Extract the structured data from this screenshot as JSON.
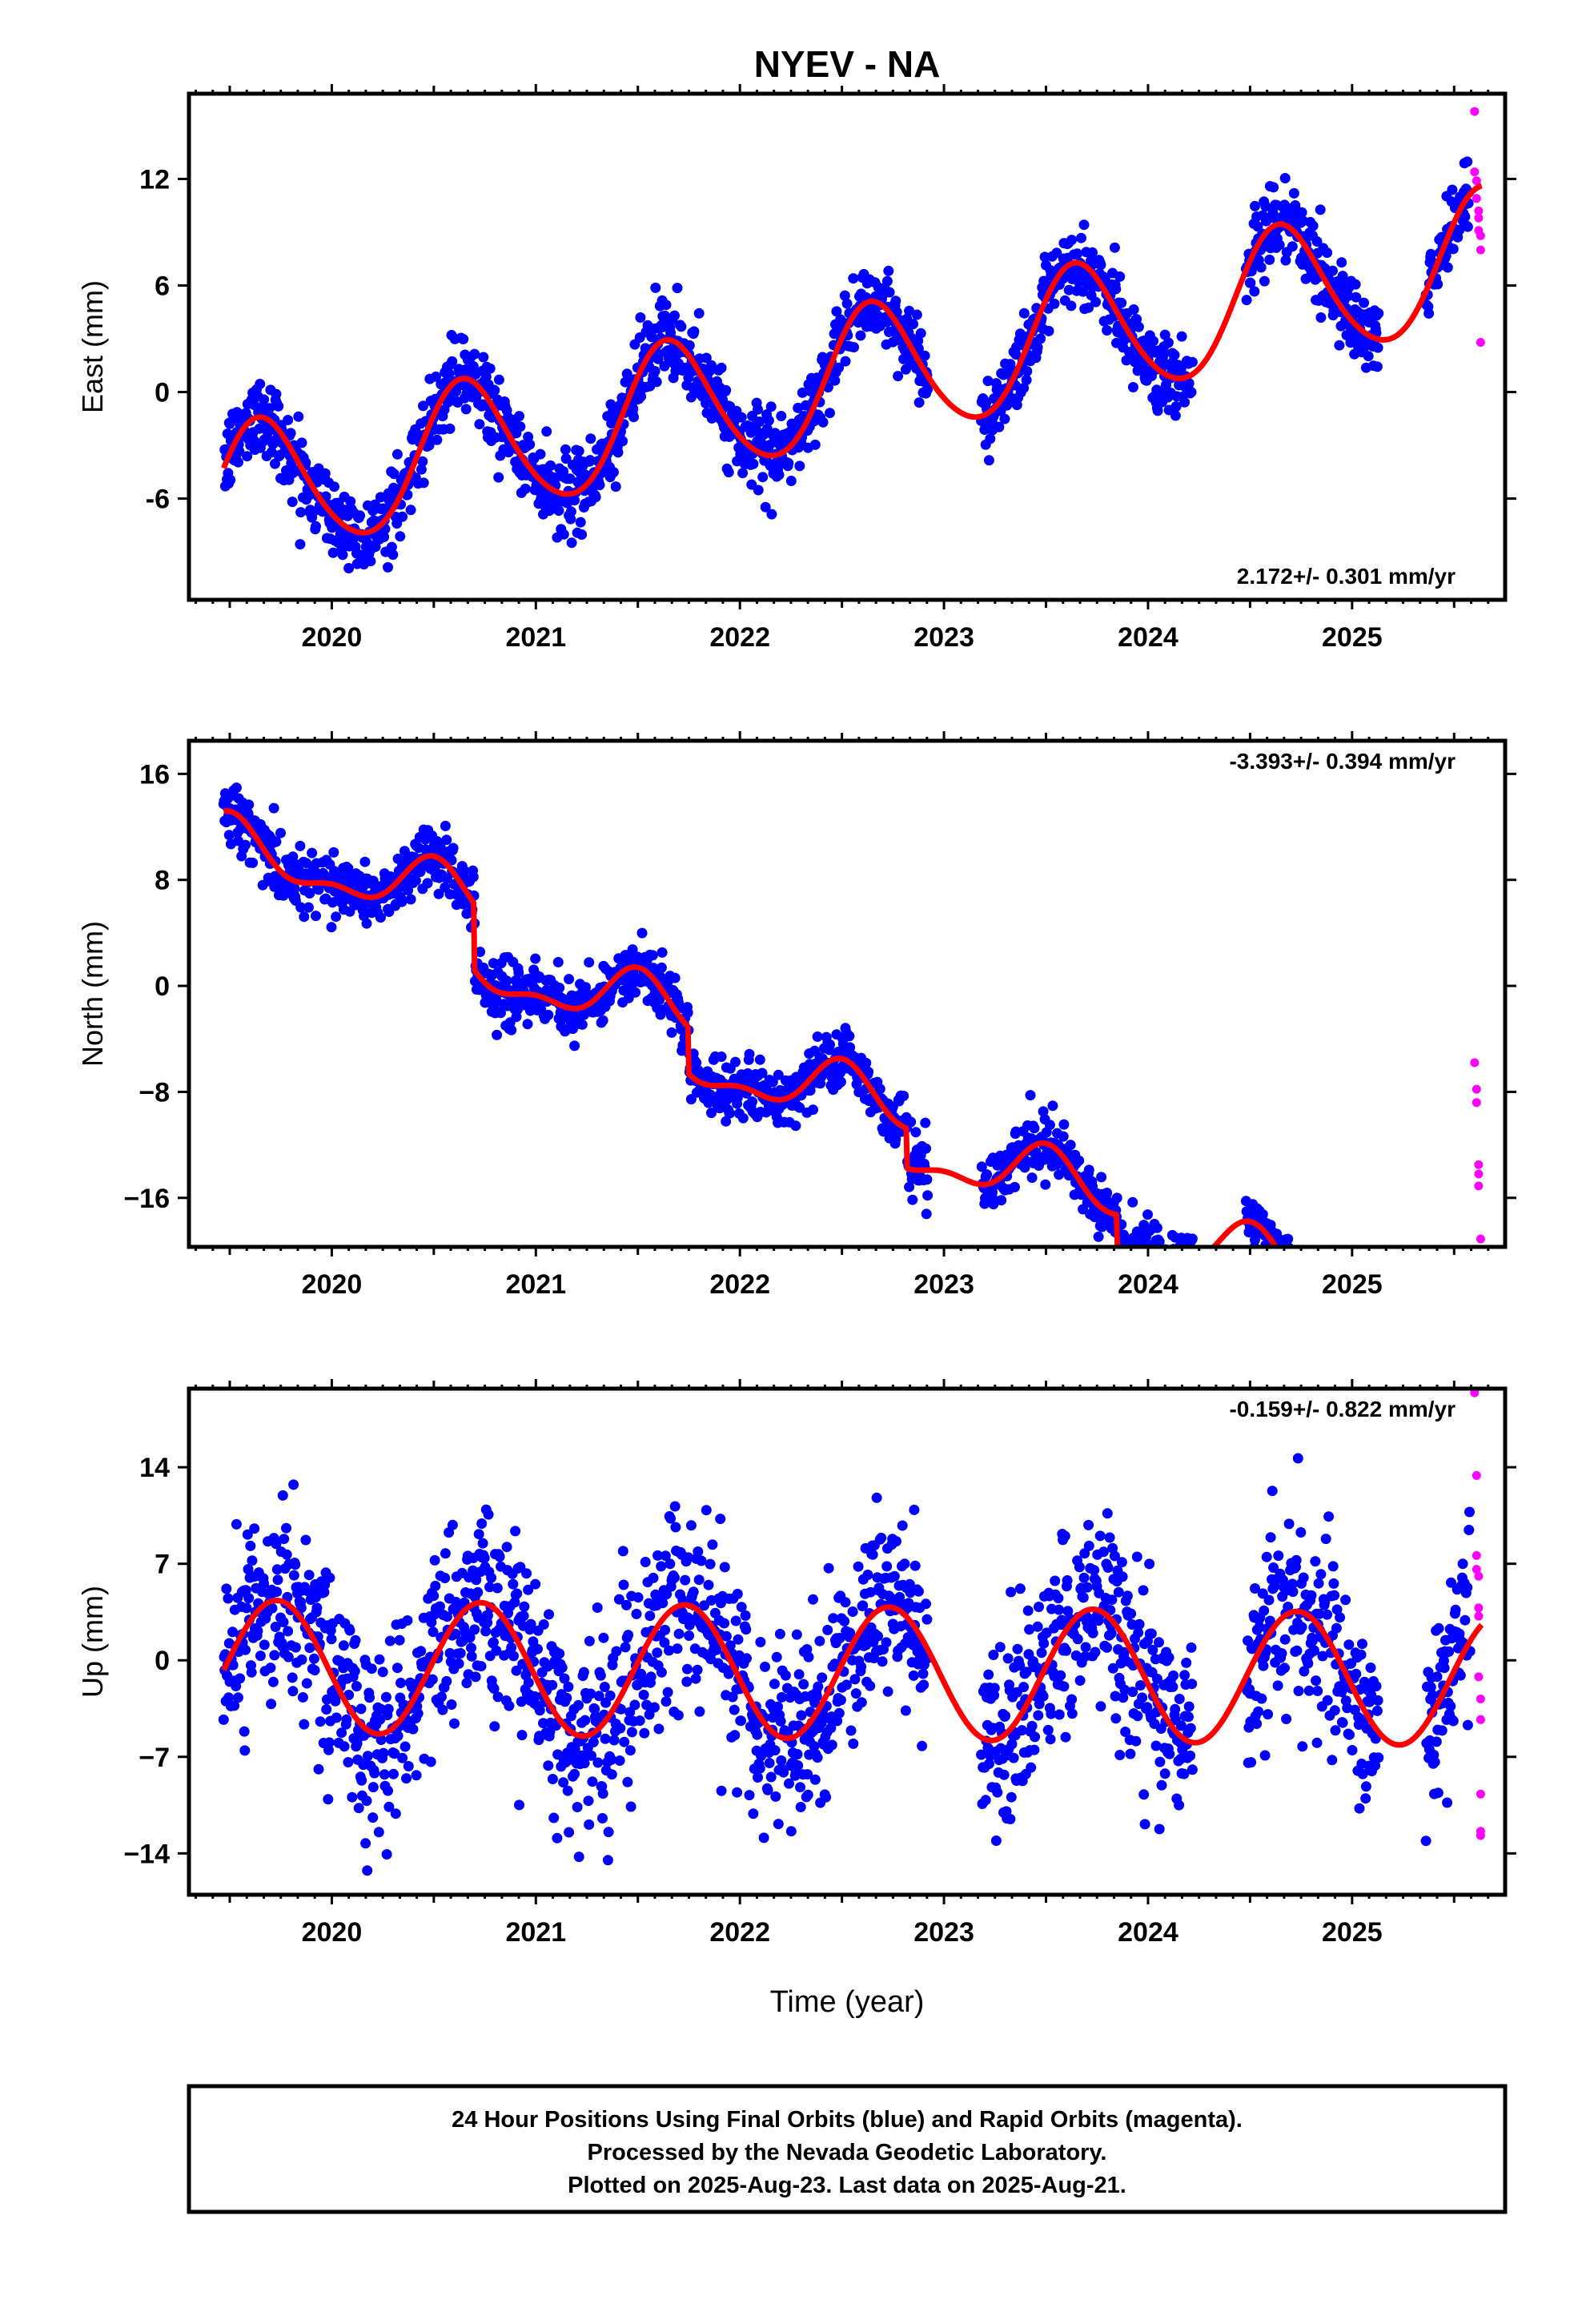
{
  "title": "NYEV - NA",
  "xlabel": "Time (year)",
  "footer": {
    "line1": "24 Hour Positions Using Final Orbits (blue) and Rapid Orbits (magenta).",
    "line2": "Processed by the Nevada Geodetic Laboratory.",
    "line3": "Plotted on 2025-Aug-23. Last data on 2025-Aug-21."
  },
  "colors": {
    "final": "#0000ff",
    "rapid": "#ff00ff",
    "model": "#ff0000",
    "frame": "#000000"
  },
  "chart_data": [
    {
      "type": "scatter",
      "name": "east",
      "ylabel": "East (mm)",
      "rate_text": "2.172+/- 0.301 mm/yr",
      "xlim": [
        2019.3,
        2025.75
      ],
      "ylim": [
        -11.7,
        16.8
      ],
      "xticks": [
        2020,
        2021,
        2022,
        2023,
        2024,
        2025
      ],
      "xtick_labels": [
        "2020",
        "2021",
        "2022",
        "2023",
        "2024",
        "2025"
      ],
      "yticks": [
        -6,
        0,
        6,
        12
      ],
      "ytick_labels": [
        "-6",
        "0",
        "6",
        "12"
      ],
      "model": {
        "ref_year": 2022.5,
        "offset": 0.7,
        "rate": 2.172,
        "annual_amp": 3.8,
        "annual_phase_year": 0.65,
        "semiannual_amp": 0.35,
        "semiannual_phase_year": 0.1
      },
      "gaps": [
        [
          2022.92,
          2023.18
        ],
        [
          2024.22,
          2024.48
        ],
        [
          2025.13,
          2025.36
        ]
      ],
      "scatter_sd": 1.1,
      "rapid_points": [
        {
          "x": 2025.6,
          "y": 15.8
        },
        {
          "x": 2025.6,
          "y": 12.4
        },
        {
          "x": 2025.61,
          "y": 11.9
        },
        {
          "x": 2025.61,
          "y": 10.9
        },
        {
          "x": 2025.62,
          "y": 10.2
        },
        {
          "x": 2025.62,
          "y": 9.8
        },
        {
          "x": 2025.62,
          "y": 9.1
        },
        {
          "x": 2025.63,
          "y": 8.8
        },
        {
          "x": 2025.63,
          "y": 8.0
        },
        {
          "x": 2025.63,
          "y": 2.8
        }
      ]
    },
    {
      "type": "scatter",
      "name": "north",
      "ylabel": "North (mm)",
      "rate_text": "-3.393+/- 0.394 mm/yr",
      "xlim": [
        2019.3,
        2025.75
      ],
      "ylim": [
        -19.7,
        18.5
      ],
      "xticks": [
        2020,
        2021,
        2022,
        2023,
        2024,
        2025
      ],
      "xtick_labels": [
        "2020",
        "2021",
        "2022",
        "2023",
        "2024",
        "2025"
      ],
      "yticks": [
        -16,
        -8,
        0,
        8,
        16
      ],
      "ytick_labels": [
        "−16",
        "−8",
        "0",
        "8",
        "16"
      ],
      "model": {
        "ref_year": 2022.5,
        "offset": 0.2,
        "rate": -3.393,
        "annual_amp": 1.9,
        "annual_phase_year": 0.5,
        "semiannual_amp": 0.9,
        "semiannual_phase_year": 0.0
      },
      "steps": [
        [
          2020.7,
          -5.0
        ],
        [
          2021.75,
          -3.5
        ],
        [
          2022.82,
          -3.0
        ],
        [
          2023.85,
          -2.5
        ],
        [
          2024.75,
          -2.5
        ]
      ],
      "gaps": [
        [
          2022.92,
          2023.18
        ],
        [
          2024.22,
          2024.48
        ],
        [
          2025.13,
          2025.36
        ]
      ],
      "scatter_sd": 1.1,
      "rapid_points": [
        {
          "x": 2025.6,
          "y": -5.8
        },
        {
          "x": 2025.61,
          "y": -7.8
        },
        {
          "x": 2025.61,
          "y": -8.8
        },
        {
          "x": 2025.62,
          "y": -13.5
        },
        {
          "x": 2025.62,
          "y": -14.2
        },
        {
          "x": 2025.62,
          "y": -15.1
        },
        {
          "x": 2025.63,
          "y": -19.1
        }
      ]
    },
    {
      "type": "scatter",
      "name": "up",
      "ylabel": "Up (mm)",
      "rate_text": "-0.159+/- 0.822 mm/yr",
      "xlim": [
        2019.3,
        2025.75
      ],
      "ylim": [
        -17.0,
        19.7
      ],
      "xticks": [
        2020,
        2021,
        2022,
        2023,
        2024,
        2025
      ],
      "xtick_labels": [
        "2020",
        "2021",
        "2022",
        "2023",
        "2024",
        "2025"
      ],
      "yticks": [
        -14,
        -7,
        0,
        7,
        14
      ],
      "ytick_labels": [
        "−14",
        "−7",
        "0",
        "7",
        "14"
      ],
      "model": {
        "ref_year": 2022.5,
        "offset": -0.9,
        "rate": -0.159,
        "annual_amp": 4.8,
        "annual_phase_year": 0.73,
        "semiannual_amp": 0.0,
        "semiannual_phase_year": 0.0
      },
      "gaps": [
        [
          2022.92,
          2023.18
        ],
        [
          2024.22,
          2024.48
        ],
        [
          2025.13,
          2025.36
        ]
      ],
      "scatter_sd": 3.4,
      "rapid_points": [
        {
          "x": 2025.6,
          "y": 19.4
        },
        {
          "x": 2025.61,
          "y": 13.4
        },
        {
          "x": 2025.61,
          "y": 7.6
        },
        {
          "x": 2025.61,
          "y": 6.6
        },
        {
          "x": 2025.62,
          "y": 6.1
        },
        {
          "x": 2025.62,
          "y": 3.8
        },
        {
          "x": 2025.62,
          "y": 3.2
        },
        {
          "x": 2025.62,
          "y": -1.2
        },
        {
          "x": 2025.63,
          "y": -2.8
        },
        {
          "x": 2025.63,
          "y": -4.3
        },
        {
          "x": 2025.63,
          "y": -9.7
        },
        {
          "x": 2025.63,
          "y": -12.4
        },
        {
          "x": 2025.63,
          "y": -12.7
        }
      ]
    }
  ]
}
